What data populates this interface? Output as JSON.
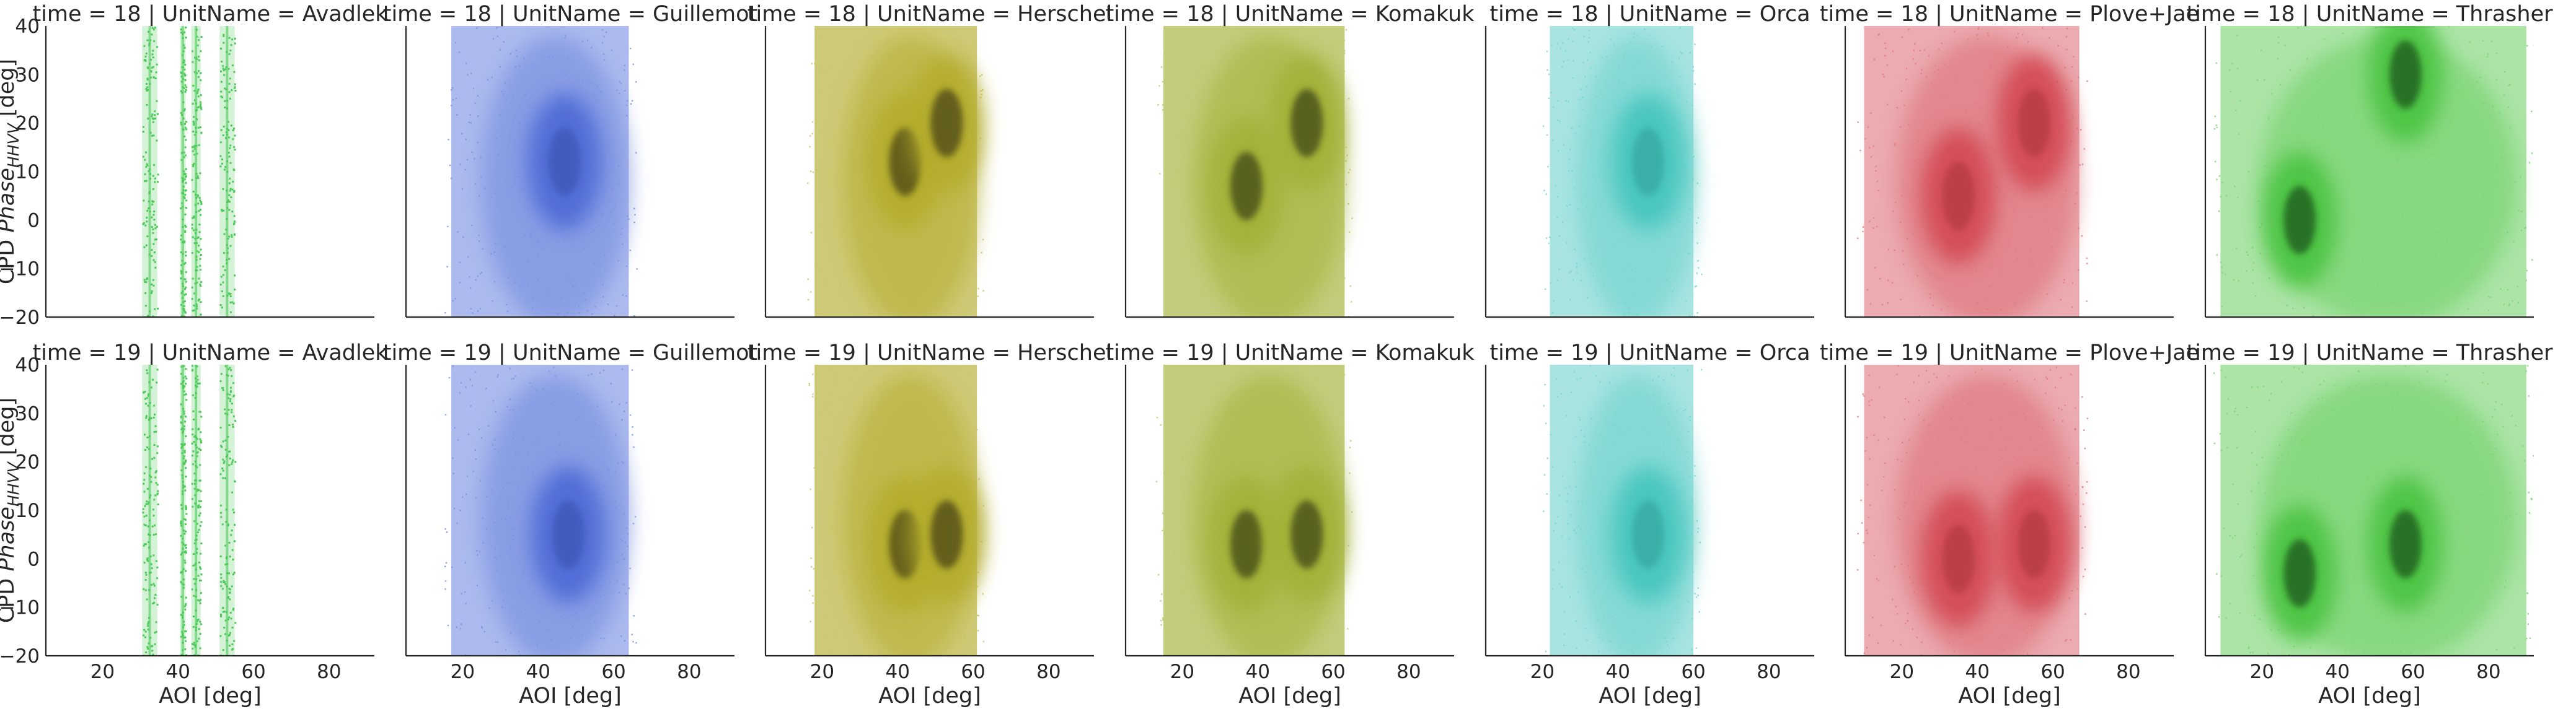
{
  "chart_data": {
    "type": "heatmap",
    "facet_grid": {
      "row_variable": "time",
      "col_variable": "UnitName"
    },
    "rows": [
      18,
      19
    ],
    "columns": [
      "Avadlek",
      "Guillemot",
      "Herschel",
      "Komakuk",
      "Orca",
      "Plove+Jae",
      "Thrasher"
    ],
    "facet_titles": [
      [
        "time = 18 | UnitName = Avadlek",
        "time = 18 | UnitName = Guillemot",
        "time = 18 | UnitName = Herschel",
        "time = 18 | UnitName = Komakuk",
        "time = 18 | UnitName = Orca",
        "time = 18 | UnitName = Plove+Jae",
        "time = 18 | UnitName = Thrasher"
      ],
      [
        "time = 19 | UnitName = Avadlek",
        "time = 19 | UnitName = Guillemot",
        "time = 19 | UnitName = Herschel",
        "time = 19 | UnitName = Komakuk",
        "time = 19 | UnitName = Orca",
        "time = 19 | UnitName = Plove+Jae",
        "time = 19 | UnitName = Thrasher"
      ]
    ],
    "xlabel": "AOI [deg]",
    "ylabel_prefix": "CPD ",
    "ylabel_phase": "Phase",
    "ylabel_subscript": "HHVV",
    "ylabel_suffix": " [deg]",
    "xlim": [
      5,
      92
    ],
    "ylim": [
      -20,
      40
    ],
    "xticks": [
      20,
      40,
      60,
      80
    ],
    "yticks": [
      -20,
      -10,
      0,
      10,
      20,
      30,
      40
    ],
    "colors": {
      "Avadlek": "#4fc95a",
      "Guillemot": "#4766d6",
      "Herschel": "#b3ac2c",
      "Komakuk": "#a2b034",
      "Orca": "#3fc4bc",
      "Plove+Jae": "#d2444f",
      "Thrasher": "#45c23a"
    },
    "series": [
      {
        "unit": "Avadlek",
        "time": 18,
        "aoi_range": [
          30,
          55
        ],
        "aoi_bands": [
          [
            30.5,
            34.5
          ],
          [
            40.5,
            42
          ],
          [
            43.5,
            46
          ],
          [
            51,
            55
          ]
        ],
        "density_peaks": []
      },
      {
        "unit": "Guillemot",
        "time": 18,
        "aoi_range": [
          17,
          64
        ],
        "density_peaks": [
          {
            "aoi": 47,
            "phase": 12
          }
        ]
      },
      {
        "unit": "Herschel",
        "time": 18,
        "aoi_range": [
          18,
          61
        ],
        "density_peaks": [
          {
            "aoi": 42,
            "phase": 12
          },
          {
            "aoi": 53,
            "phase": 20
          }
        ]
      },
      {
        "unit": "Komakuk",
        "time": 18,
        "aoi_range": [
          15,
          63
        ],
        "density_peaks": [
          {
            "aoi": 37,
            "phase": 7
          },
          {
            "aoi": 53,
            "phase": 20
          }
        ]
      },
      {
        "unit": "Orca",
        "time": 18,
        "aoi_range": [
          22,
          60
        ],
        "density_peaks": [
          {
            "aoi": 48,
            "phase": 12
          }
        ]
      },
      {
        "unit": "Plove+Jae",
        "time": 18,
        "aoi_range": [
          10,
          67
        ],
        "density_peaks": [
          {
            "aoi": 35,
            "phase": 5
          },
          {
            "aoi": 55,
            "phase": 20
          }
        ]
      },
      {
        "unit": "Thrasher",
        "time": 18,
        "aoi_range": [
          9,
          90
        ],
        "density_peaks": [
          {
            "aoi": 30,
            "phase": 0
          },
          {
            "aoi": 58,
            "phase": 30
          }
        ]
      },
      {
        "unit": "Avadlek",
        "time": 19,
        "aoi_range": [
          30,
          55
        ],
        "aoi_bands": [
          [
            30.5,
            34.5
          ],
          [
            40.5,
            42
          ],
          [
            43.5,
            46
          ],
          [
            51,
            55
          ]
        ],
        "density_peaks": []
      },
      {
        "unit": "Guillemot",
        "time": 19,
        "aoi_range": [
          17,
          64
        ],
        "density_peaks": [
          {
            "aoi": 48,
            "phase": 5
          }
        ]
      },
      {
        "unit": "Herschel",
        "time": 19,
        "aoi_range": [
          18,
          61
        ],
        "density_peaks": [
          {
            "aoi": 42,
            "phase": 3
          },
          {
            "aoi": 53,
            "phase": 5
          }
        ]
      },
      {
        "unit": "Komakuk",
        "time": 19,
        "aoi_range": [
          15,
          63
        ],
        "density_peaks": [
          {
            "aoi": 37,
            "phase": 3
          },
          {
            "aoi": 53,
            "phase": 5
          }
        ]
      },
      {
        "unit": "Orca",
        "time": 19,
        "aoi_range": [
          22,
          60
        ],
        "density_peaks": [
          {
            "aoi": 48,
            "phase": 5
          }
        ]
      },
      {
        "unit": "Plove+Jae",
        "time": 19,
        "aoi_range": [
          10,
          67
        ],
        "density_peaks": [
          {
            "aoi": 35,
            "phase": 0
          },
          {
            "aoi": 55,
            "phase": 3
          }
        ]
      },
      {
        "unit": "Thrasher",
        "time": 19,
        "aoi_range": [
          9,
          90
        ],
        "density_peaks": [
          {
            "aoi": 30,
            "phase": -3
          },
          {
            "aoi": 58,
            "phase": 3
          }
        ]
      }
    ],
    "grid": false,
    "legend": "none"
  }
}
